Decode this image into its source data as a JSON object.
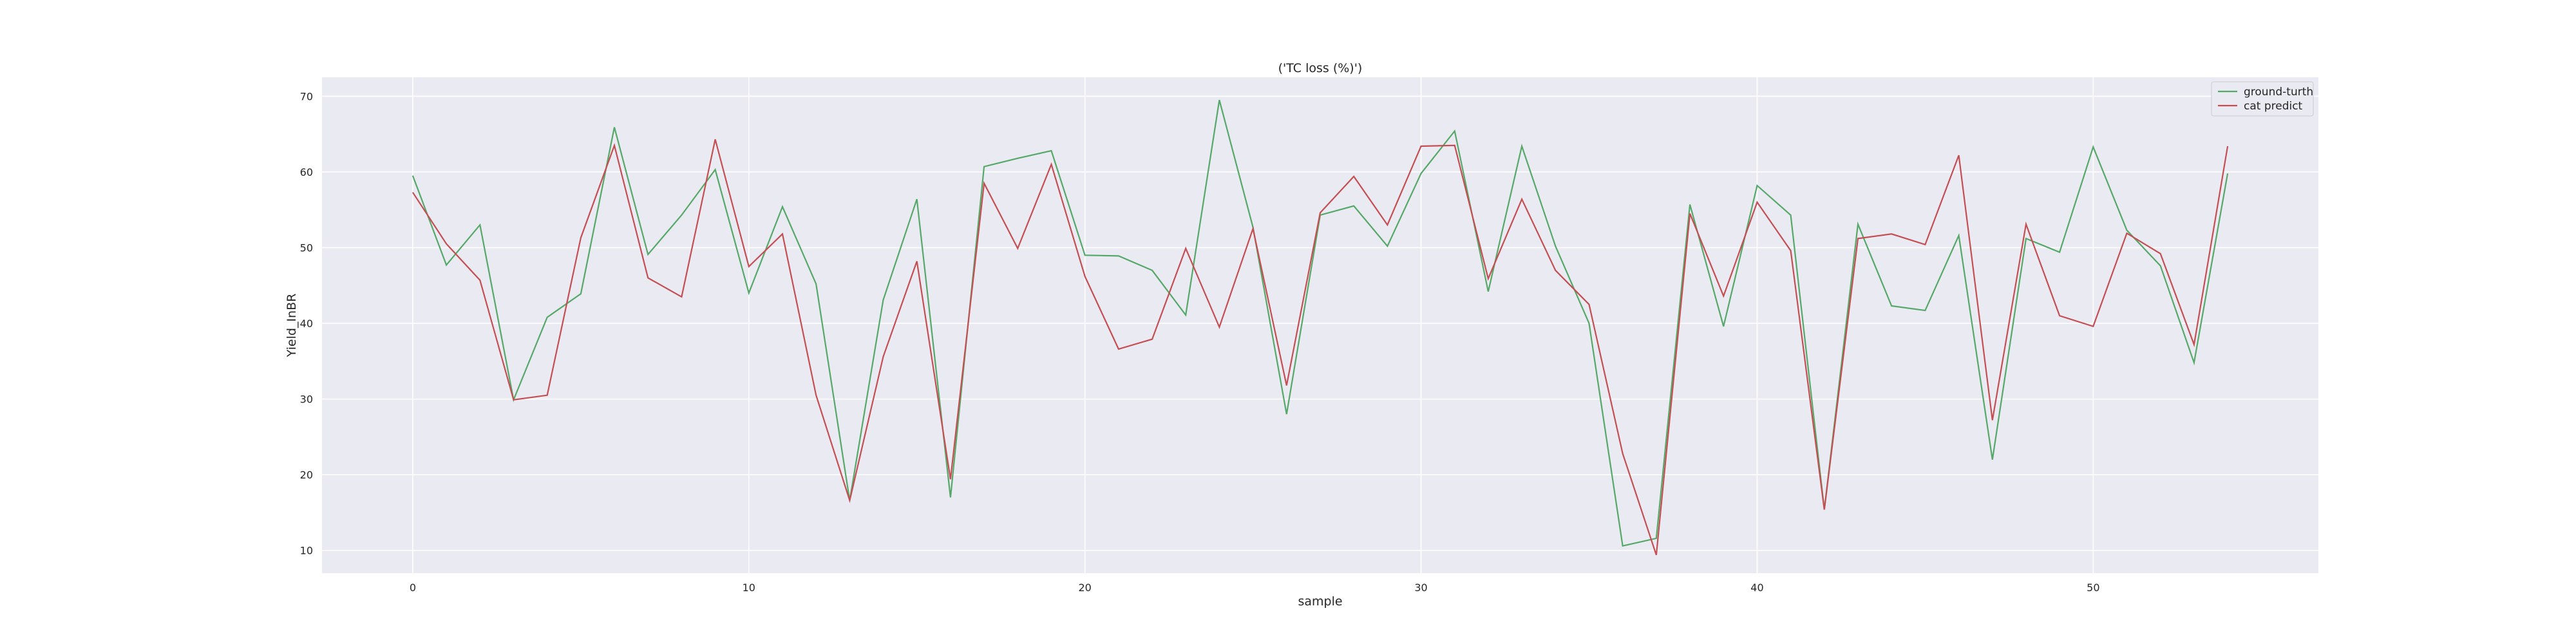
{
  "chart_data": {
    "type": "line",
    "title": "('TC loss (%)')",
    "xlabel": "sample",
    "ylabel": "Yield_InBR",
    "xlim": [
      -2.7,
      56.7
    ],
    "ylim": [
      7.0,
      72.5
    ],
    "xticks": [
      0,
      10,
      20,
      30,
      40,
      50
    ],
    "yticks": [
      10,
      20,
      30,
      40,
      50,
      60,
      70
    ],
    "grid": true,
    "legend": "top-right",
    "x": [
      0,
      1,
      2,
      3,
      4,
      5,
      6,
      7,
      8,
      9,
      10,
      11,
      12,
      13,
      14,
      15,
      16,
      17,
      18,
      19,
      20,
      21,
      22,
      23,
      24,
      25,
      26,
      27,
      28,
      29,
      30,
      31,
      32,
      33,
      34,
      35,
      36,
      37,
      38,
      39,
      40,
      41,
      42,
      43,
      44,
      45,
      46,
      47,
      48,
      49,
      50,
      51,
      52,
      53,
      54
    ],
    "series": [
      {
        "name": "ground-turth",
        "color": "#55a868",
        "values": [
          59.5,
          47.7,
          53,
          29.9,
          40.8,
          43.9,
          65.9,
          49.1,
          54.3,
          60.3,
          44.0,
          55.4,
          45.2,
          16.6,
          43.1,
          56.4,
          17.0,
          60.7,
          61.8,
          62.8,
          49.0,
          48.9,
          47.0,
          41.1,
          69.5,
          52.7,
          28.0,
          54.3,
          55.5,
          50.2,
          59.8,
          65.4,
          44.2,
          63.4,
          50.2,
          40.0,
          10.6,
          11.6,
          55.7,
          39.6,
          58.2,
          54.3,
          15.4,
          53.1,
          42.3,
          41.7,
          51.6,
          22.0,
          51.2,
          49.4,
          63.3,
          52.3,
          47.6,
          34.8,
          59.8
        ]
      },
      {
        "name": "cat predict",
        "color": "#c44e52",
        "values": [
          57.3,
          50.5,
          45.7,
          29.9,
          30.5,
          51.3,
          63.5,
          46.0,
          43.5,
          64.3,
          47.5,
          51.8,
          30.5,
          16.6,
          35.6,
          48.2,
          19.4,
          58.5,
          49.9,
          61.0,
          46.2,
          36.6,
          37.9,
          49.9,
          39.5,
          52.5,
          31.8,
          54.6,
          59.4,
          53.0,
          63.4,
          63.5,
          45.9,
          56.4,
          47.0,
          42.5,
          22.8,
          9.4,
          54.5,
          43.6,
          56.0,
          49.6,
          15.4,
          51.2,
          51.8,
          50.4,
          62.2,
          27.2,
          53.1,
          41.0,
          39.6,
          51.9,
          49.2,
          37.2,
          63.4
        ]
      }
    ]
  }
}
